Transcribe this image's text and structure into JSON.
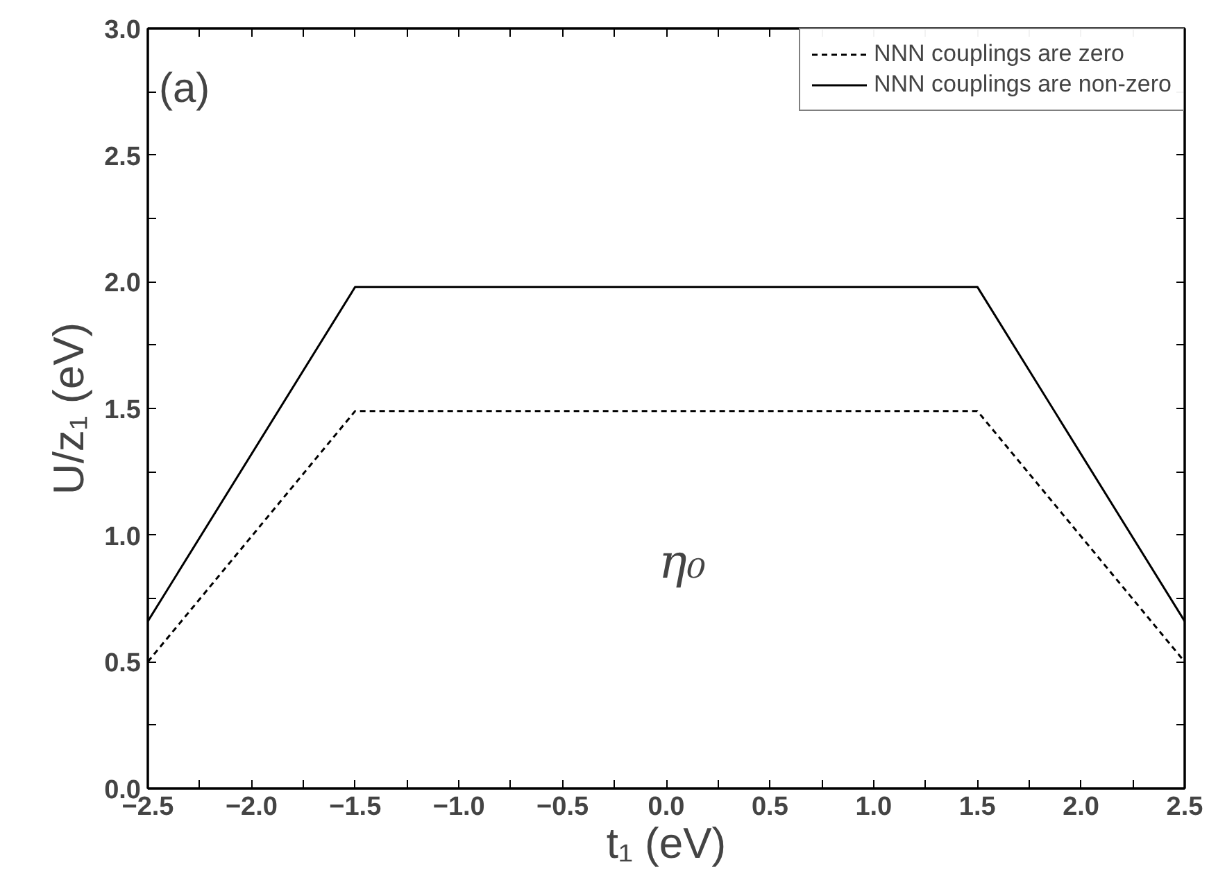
{
  "chart_data": {
    "type": "line",
    "xlabel": "t₁ (eV)",
    "ylabel": "U/z₁ (eV)",
    "x": [
      -2.5,
      -1.5,
      1.5,
      2.5
    ],
    "series": [
      {
        "name": "NNN couplings are zero",
        "color": "#000000",
        "line_style": "dashed",
        "values": [
          0.5,
          1.49,
          1.49,
          0.5
        ]
      },
      {
        "name": "NNN couplings are non-zero",
        "color": "#000000",
        "line_style": "solid",
        "values": [
          0.66,
          1.98,
          1.98,
          0.66
        ]
      }
    ],
    "xlim": [
      -2.5,
      2.5
    ],
    "ylim": [
      0,
      3
    ],
    "xticks": [
      {
        "value": -2.5,
        "label": "−2.5"
      },
      {
        "value": -2.25,
        "label": null
      },
      {
        "value": -2.0,
        "label": "−2.0"
      },
      {
        "value": -1.75,
        "label": null
      },
      {
        "value": -1.5,
        "label": "−1.5"
      },
      {
        "value": -1.25,
        "label": null
      },
      {
        "value": -1.0,
        "label": "−1.0"
      },
      {
        "value": -0.75,
        "label": null
      },
      {
        "value": -0.5,
        "label": "−0.5"
      },
      {
        "value": -0.25,
        "label": null
      },
      {
        "value": 0,
        "label": "0.0"
      },
      {
        "value": 0.25,
        "label": null
      },
      {
        "value": 0.5,
        "label": "0.5"
      },
      {
        "value": 0.75,
        "label": null
      },
      {
        "value": 1,
        "label": "1.0"
      },
      {
        "value": 1.25,
        "label": null
      },
      {
        "value": 1.5,
        "label": "1.5"
      },
      {
        "value": 1.75,
        "label": null
      },
      {
        "value": 2,
        "label": "2.0"
      },
      {
        "value": 2.25,
        "label": null
      },
      {
        "value": 2.5,
        "label": "2.5"
      }
    ],
    "yticks": [
      {
        "value": 0,
        "label": "0.0"
      },
      {
        "value": 0.25,
        "label": null
      },
      {
        "value": 0.5,
        "label": "0.5"
      },
      {
        "value": 0.75,
        "label": null
      },
      {
        "value": 1,
        "label": "1.0"
      },
      {
        "value": 1.25,
        "label": null
      },
      {
        "value": 1.5,
        "label": "1.5"
      },
      {
        "value": 1.75,
        "label": null
      },
      {
        "value": 2,
        "label": "2.0"
      },
      {
        "value": 2.25,
        "label": null
      },
      {
        "value": 2.5,
        "label": "2.5"
      },
      {
        "value": 2.75,
        "label": null
      },
      {
        "value": 3,
        "label": "3.0"
      }
    ],
    "annotations": [
      "(a)",
      "η₀"
    ],
    "legend": "top right",
    "grid": false
  }
}
